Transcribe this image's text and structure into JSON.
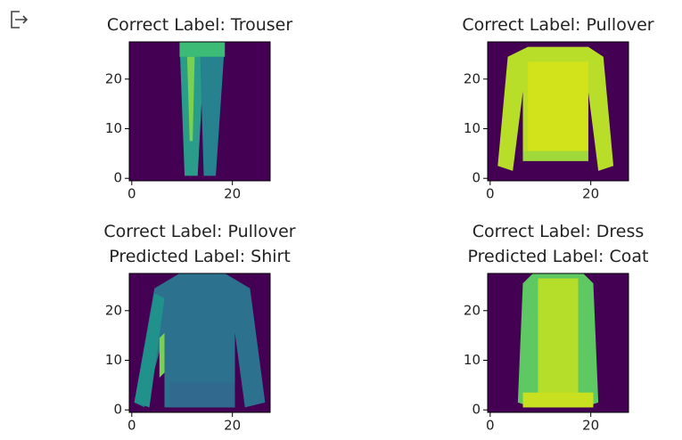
{
  "panels": [
    {
      "title_lines": [
        "Correct Label: Trouser"
      ],
      "xlim": [
        -0.5,
        27.5
      ],
      "ylim": [
        27.5,
        -0.5
      ],
      "xticks": [
        0,
        20
      ],
      "yticks": [
        0,
        10,
        20
      ]
    },
    {
      "title_lines": [
        "Correct Label: Pullover"
      ],
      "xlim": [
        -0.5,
        27.5
      ],
      "ylim": [
        27.5,
        -0.5
      ],
      "xticks": [
        0,
        20
      ],
      "yticks": [
        0,
        10,
        20
      ]
    },
    {
      "title_lines": [
        "Correct Label: Pullover",
        "Predicted Label: Shirt"
      ],
      "xlim": [
        -0.5,
        27.5
      ],
      "ylim": [
        27.5,
        -0.5
      ],
      "xticks": [
        0,
        20
      ],
      "yticks": [
        0,
        10,
        20
      ]
    },
    {
      "title_lines": [
        "Correct Label: Dress",
        "Predicted Label: Coat"
      ],
      "xlim": [
        -0.5,
        27.5
      ],
      "ylim": [
        27.5,
        -0.5
      ],
      "xticks": [
        0,
        20
      ],
      "yticks": [
        0,
        10,
        20
      ]
    }
  ]
}
